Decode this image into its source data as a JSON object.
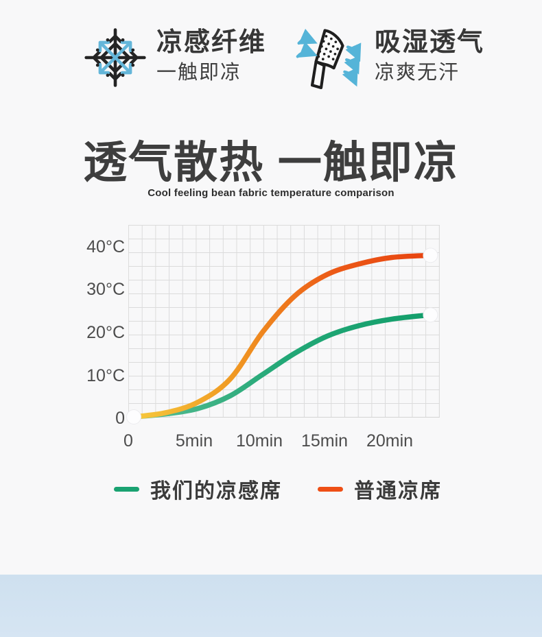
{
  "features": [
    {
      "icon": "snowflake-icon",
      "title": "凉感纤维",
      "subtitle": "一触即凉"
    },
    {
      "icon": "breathable-fabric-icon",
      "title": "吸湿透气",
      "subtitle": "凉爽无汗"
    }
  ],
  "headline": {
    "title": "透气散热 一触即凉",
    "subtitle": "Cool feeling bean fabric temperature comparison"
  },
  "chart_data": {
    "type": "line",
    "x": [
      0,
      2.5,
      5,
      7.5,
      10,
      12.5,
      15,
      17.5,
      20,
      23
    ],
    "x_unit": "min",
    "x_tick_labels": [
      "0",
      "5min",
      "10min",
      "15min",
      "20min"
    ],
    "x_tick_values": [
      0,
      5,
      10,
      15,
      20
    ],
    "y_tick_labels": [
      "0",
      "10°C",
      "20°C",
      "30°C",
      "40°C"
    ],
    "y_tick_values": [
      0,
      10,
      20,
      30,
      40
    ],
    "xlim": [
      0,
      24
    ],
    "ylim": [
      0,
      45
    ],
    "grid": true,
    "legend_position": "bottom",
    "markers": "white dot at origin and at end of each series",
    "series": [
      {
        "name": "我们的凉感席",
        "color": "#1aa271",
        "gradient": [
          "#5abd94",
          "#23a877",
          "#129e6a"
        ],
        "values": [
          0,
          0.7,
          2,
          5,
          10,
          15,
          19,
          21.5,
          23,
          24
        ]
      },
      {
        "name": "普通凉席",
        "color": "#ee4f16",
        "gradient": [
          "#f6c93d",
          "#f09a23",
          "#ec5a17",
          "#e7430f"
        ],
        "values": [
          0,
          1,
          3.5,
          9,
          20,
          28.5,
          33.5,
          36,
          37.5,
          38
        ]
      }
    ]
  },
  "colors": {
    "accent_blue": "#5bb4d8",
    "icon_black": "#242424",
    "grid": "#dbdbdb",
    "text_dark": "#3b3b3b",
    "bottom_band_top": "#cee0ef",
    "bottom_band_bottom": "#d6e5f3"
  }
}
